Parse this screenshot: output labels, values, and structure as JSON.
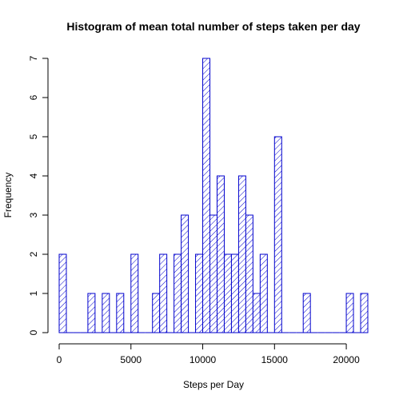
{
  "chart_data": {
    "type": "bar",
    "title": "Histogram of mean total number of steps taken per day",
    "xlabel": "Steps per Day",
    "ylabel": "Frequency",
    "bin_width": 500,
    "xlim": [
      0,
      21500
    ],
    "ylim": [
      0,
      7
    ],
    "xticks": [
      0,
      5000,
      10000,
      15000,
      20000
    ],
    "yticks": [
      0,
      1,
      2,
      3,
      4,
      5,
      6,
      7
    ],
    "bar_color": "#0000cd",
    "fill": "hatched",
    "bins_start": [
      0,
      500,
      1000,
      1500,
      2000,
      2500,
      3000,
      3500,
      4000,
      4500,
      5000,
      5500,
      6000,
      6500,
      7000,
      7500,
      8000,
      8500,
      9000,
      9500,
      10000,
      10500,
      11000,
      11500,
      12000,
      12500,
      13000,
      13500,
      14000,
      14500,
      15000,
      15500,
      16000,
      16500,
      17000,
      17500,
      18000,
      18500,
      19000,
      19500,
      20000,
      20500,
      21000
    ],
    "values": [
      2,
      0,
      0,
      0,
      1,
      0,
      1,
      0,
      1,
      0,
      2,
      0,
      0,
      1,
      2,
      0,
      2,
      3,
      0,
      2,
      7,
      3,
      4,
      2,
      2,
      4,
      3,
      1,
      2,
      0,
      5,
      0,
      0,
      0,
      1,
      0,
      0,
      0,
      0,
      0,
      1,
      0,
      1
    ]
  }
}
